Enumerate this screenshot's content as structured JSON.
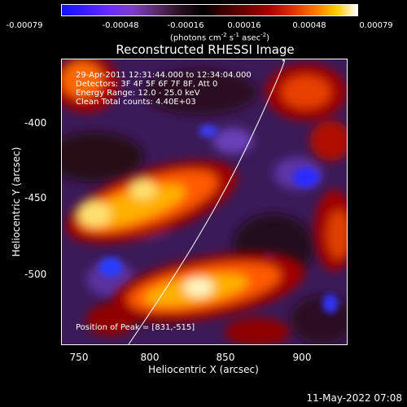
{
  "colorbar": {
    "ticks": [
      "-0.00079",
      "-0.00048",
      "-0.00016",
      "0.00016",
      "0.00048",
      "0.00079"
    ],
    "units_text": "(photons cm",
    "units_sup1": "-2",
    "units_mid1": " s",
    "units_sup2": "-1",
    "units_mid2": " asec",
    "units_sup3": "-2",
    "units_end": ")"
  },
  "title": "Reconstructed RHESSI Image",
  "info": {
    "line1": "29-Apr-2011 12:31:44.000 to 12:34:04.000",
    "line2": "Detectors: 3F 4F 5F 6F 7F 8F, Att 0",
    "line3": "Energy Range: 12.0 - 25.0 keV",
    "line4": "Clean     Total counts: 4.40E+03",
    "peak": "Position of Peak = [831,-515]"
  },
  "axes": {
    "xlabel": "Heliocentric X (arcsec)",
    "ylabel": "Heliocentric Y (arcsec)",
    "xticks": [
      "750",
      "800",
      "850",
      "900"
    ],
    "yticks": [
      "-400",
      "-450",
      "-500"
    ]
  },
  "footer": {
    "timestamp": "11-May-2022 07:08"
  },
  "colors": {
    "background": "#000000",
    "image_background": "#3b1a58",
    "hot": "#ffcc00",
    "peak": "#fff4c0",
    "cold": "#1818ff"
  }
}
